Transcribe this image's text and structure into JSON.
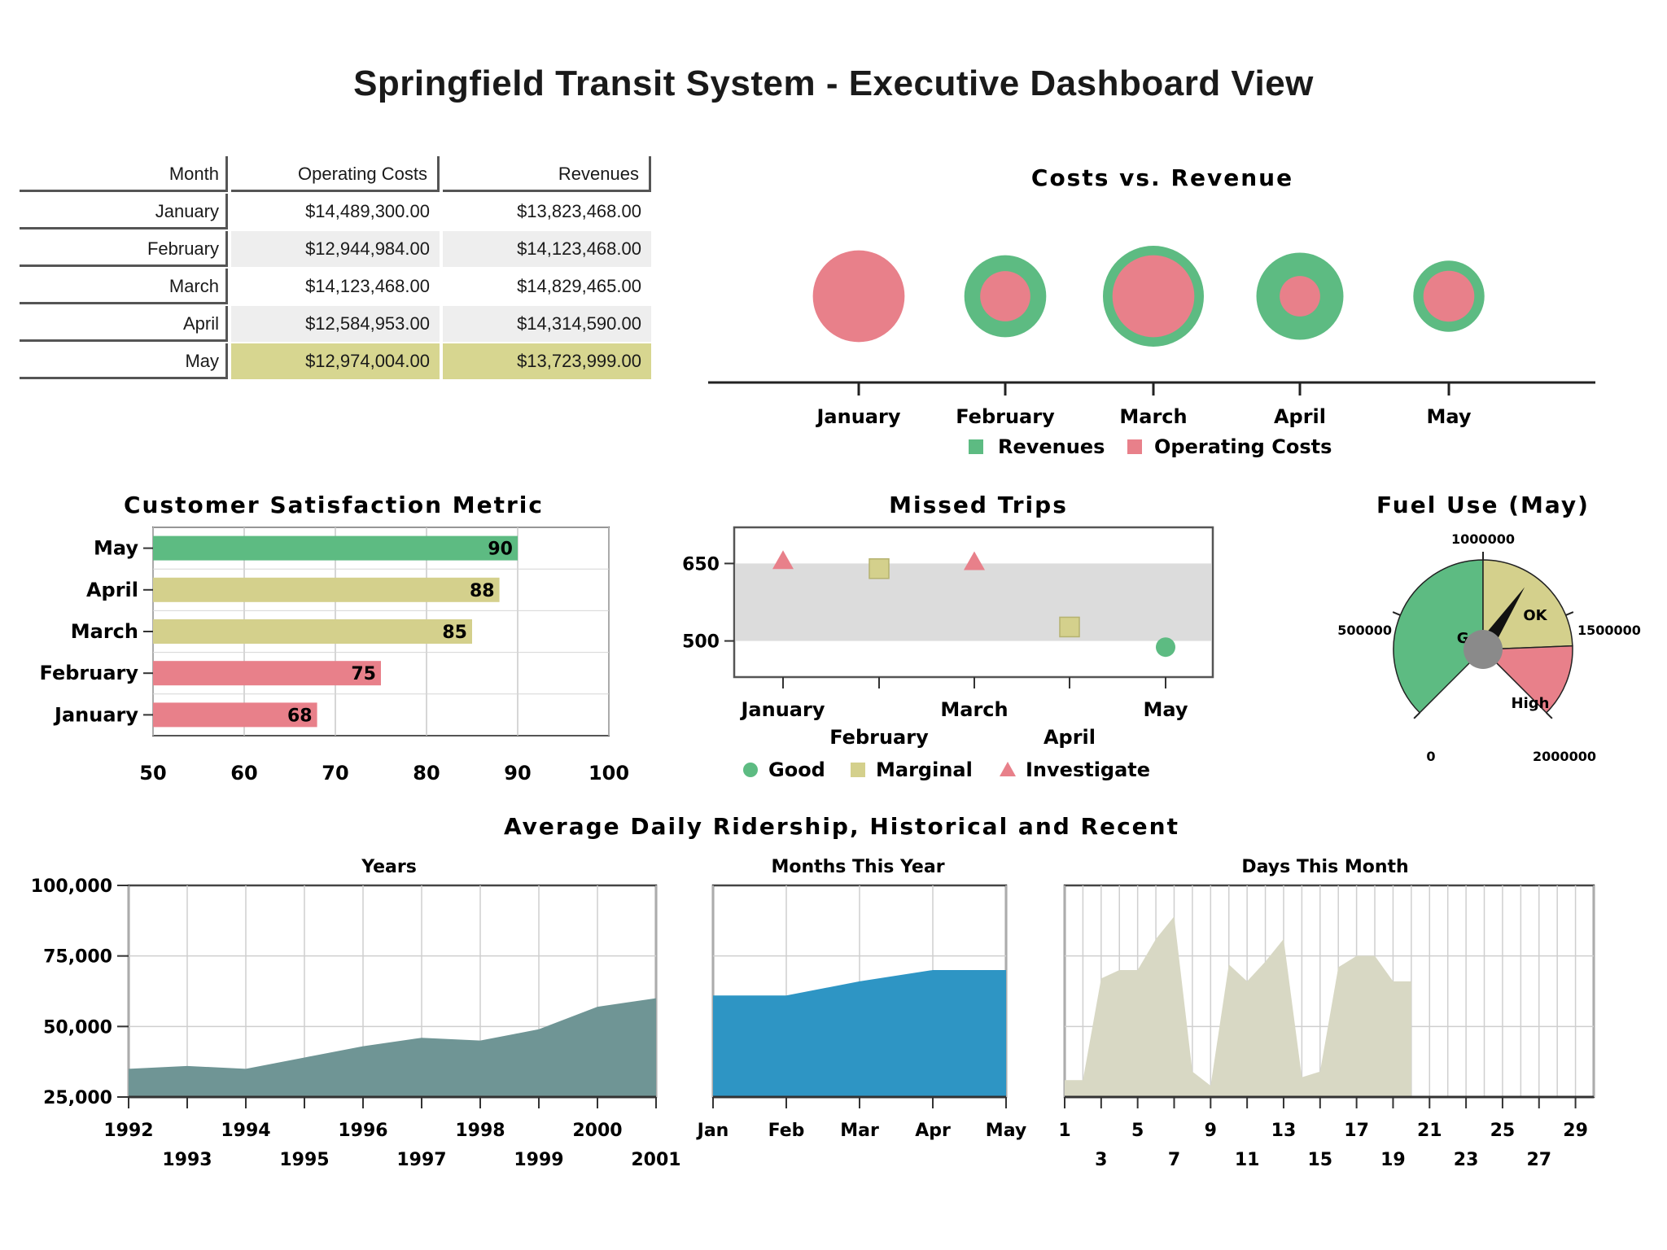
{
  "title": "Springfield Transit System - Executive Dashboard View",
  "colors": {
    "green": "#5dbb82",
    "pink": "#e8808a",
    "khaki": "#d4d08c",
    "years_area": "#6f9595",
    "months_area": "#2e95c4",
    "days_area": "#d8d8c4",
    "band_gray": "#dcdcdc",
    "gauge_hub": "#8a8a8a",
    "row_highlight": "#d7d690",
    "row_shaded": "#eeeeee"
  },
  "table": {
    "headers": [
      "Month",
      "Operating Costs",
      "Revenues"
    ],
    "rows": [
      {
        "month": "January",
        "costs": "$14,489,300.00",
        "revenues": "$13,823,468.00",
        "style": "plain"
      },
      {
        "month": "February",
        "costs": "$12,944,984.00",
        "revenues": "$14,123,468.00",
        "style": "shaded"
      },
      {
        "month": "March",
        "costs": "$14,123,468.00",
        "revenues": "$14,829,465.00",
        "style": "plain"
      },
      {
        "month": "April",
        "costs": "$12,584,953.00",
        "revenues": "$14,314,590.00",
        "style": "shaded"
      },
      {
        "month": "May",
        "costs": "$12,974,004.00",
        "revenues": "$13,723,999.00",
        "style": "highlight"
      }
    ]
  },
  "chart_data": [
    {
      "id": "costs-vs-revenue",
      "type": "bubble",
      "title": "Costs vs. Revenue",
      "categories": [
        "January",
        "February",
        "March",
        "April",
        "May"
      ],
      "series": [
        {
          "name": "Revenues",
          "color": "#5dbb82",
          "values": [
            13823468,
            14123468,
            14829465,
            14314590,
            13723999
          ]
        },
        {
          "name": "Operating Costs",
          "color": "#e8808a",
          "values": [
            14489300,
            12944984,
            14123468,
            12584953,
            12974004
          ]
        }
      ],
      "legend": "bottom"
    },
    {
      "id": "customer-satisfaction",
      "type": "bar",
      "orientation": "horizontal",
      "title": "Customer Satisfaction Metric",
      "categories": [
        "May",
        "April",
        "March",
        "February",
        "January"
      ],
      "values": [
        90,
        88,
        85,
        75,
        68
      ],
      "bar_colors": [
        "#5dbb82",
        "#d4d08c",
        "#d4d08c",
        "#e8808a",
        "#e8808a"
      ],
      "xlim": [
        50,
        100
      ],
      "xticks": [
        50,
        60,
        70,
        80,
        90,
        100
      ],
      "grid": true
    },
    {
      "id": "missed-trips",
      "type": "scatter",
      "title": "Missed Trips",
      "categories": [
        "January",
        "February",
        "March",
        "April",
        "May"
      ],
      "points": [
        {
          "x": "January",
          "y": 655,
          "status": "Investigate"
        },
        {
          "x": "February",
          "y": 640,
          "status": "Marginal"
        },
        {
          "x": "March",
          "y": 653,
          "status": "Investigate"
        },
        {
          "x": "April",
          "y": 527,
          "status": "Marginal"
        },
        {
          "x": "May",
          "y": 488,
          "status": "Good"
        }
      ],
      "yticks": [
        500,
        650
      ],
      "band": [
        500,
        650
      ],
      "legend": [
        {
          "name": "Good",
          "shape": "circle",
          "color": "#5dbb82"
        },
        {
          "name": "Marginal",
          "shape": "square",
          "color": "#d4d08c"
        },
        {
          "name": "Investigate",
          "shape": "triangle",
          "color": "#e8808a"
        }
      ]
    },
    {
      "id": "fuel-use",
      "type": "gauge",
      "title": "Fuel Use (May)",
      "min": 0,
      "max": 2000000,
      "tick_labels": [
        "0",
        "500000",
        "1000000",
        "1500000",
        "2000000"
      ],
      "ranges": [
        {
          "label": "Good",
          "from": 0,
          "to": 1000000,
          "color": "#5dbb82"
        },
        {
          "label": "OK",
          "from": 1000000,
          "to": 1650000,
          "color": "#d4d08c"
        },
        {
          "label": "High",
          "from": 1650000,
          "to": 2000000,
          "color": "#e8808a"
        }
      ],
      "value": 1250000
    },
    {
      "id": "ridership-years",
      "type": "area",
      "title": "Years",
      "x": [
        1992,
        1993,
        1994,
        1995,
        1996,
        1997,
        1998,
        1999,
        2000,
        2001
      ],
      "values": [
        35000,
        36000,
        35000,
        39000,
        43000,
        46000,
        45000,
        49000,
        57000,
        60000
      ],
      "tick_labels_row1": [
        "1992",
        "1994",
        "1996",
        "1998",
        "2000"
      ],
      "tick_labels_row2": [
        "1993",
        "1995",
        "1997",
        "1999",
        "2001"
      ],
      "ylim": [
        25000,
        100000
      ],
      "yticks": [
        "25,000",
        "50,000",
        "75,000",
        "100,000"
      ],
      "grid": true
    },
    {
      "id": "ridership-months",
      "type": "area",
      "title": "Months This Year",
      "categories": [
        "Jan",
        "Feb",
        "Mar",
        "Apr",
        "May"
      ],
      "values": [
        61000,
        61000,
        66000,
        70000,
        70000
      ],
      "ylim": [
        25000,
        100000
      ],
      "grid": true
    },
    {
      "id": "ridership-days",
      "type": "area",
      "title": "Days This Month",
      "x": [
        1,
        2,
        3,
        4,
        5,
        6,
        7,
        8,
        9,
        10,
        11,
        12,
        13,
        14,
        15,
        16,
        17,
        18,
        19,
        20
      ],
      "values": [
        31000,
        31000,
        67000,
        70000,
        70000,
        81000,
        89000,
        34000,
        29000,
        72000,
        66000,
        73000,
        81000,
        32000,
        34000,
        71000,
        75000,
        75000,
        66000,
        66000
      ],
      "tick_labels_row1": [
        "1",
        "5",
        "9",
        "13",
        "17",
        "21",
        "25",
        "29"
      ],
      "tick_labels_row2": [
        "3",
        "7",
        "11",
        "15",
        "19",
        "23",
        "27"
      ],
      "ylim": [
        25000,
        100000
      ],
      "grid": true
    }
  ],
  "ridership_title": "Average Daily Ridership, Historical and Recent"
}
